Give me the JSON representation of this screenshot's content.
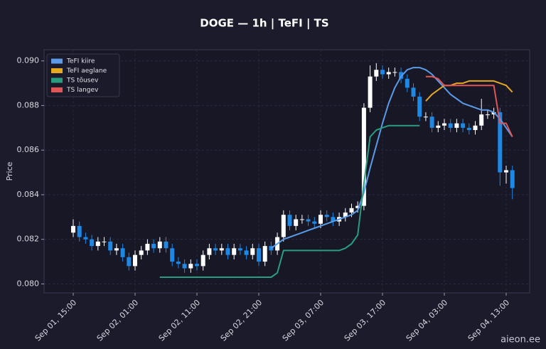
{
  "chart_data": {
    "type": "candlestick",
    "title": "DOGE — 1h  |  TeFI  |  TS",
    "y_label": "Price",
    "watermark": "aieon.ee",
    "grid": true,
    "legend_position": "upper-left",
    "up_color": "#ffffff",
    "down_color": "#1e88e5",
    "ylim": [
      0.0796,
      0.0905
    ],
    "yticks": [
      {
        "value": 0.08,
        "label": "0.080"
      },
      {
        "value": 0.082,
        "label": "0.082"
      },
      {
        "value": 0.084,
        "label": "0.084"
      },
      {
        "value": 0.086,
        "label": "0.086"
      },
      {
        "value": 0.088,
        "label": "0.088"
      },
      {
        "value": 0.09,
        "label": "0.090"
      }
    ],
    "categories": [
      "Sep 01, 15:00",
      null,
      null,
      null,
      null,
      null,
      null,
      null,
      null,
      null,
      "Sep 02, 01:00",
      null,
      null,
      null,
      null,
      null,
      null,
      null,
      null,
      null,
      "Sep 02, 11:00",
      null,
      null,
      null,
      null,
      null,
      null,
      null,
      null,
      null,
      "Sep 02, 21:00",
      null,
      null,
      null,
      null,
      null,
      null,
      null,
      null,
      null,
      "Sep 03, 07:00",
      null,
      null,
      null,
      null,
      null,
      null,
      null,
      null,
      null,
      "Sep 03, 17:00",
      null,
      null,
      null,
      null,
      null,
      null,
      null,
      null,
      null,
      "Sep 04, 03:00",
      null,
      null,
      null,
      null,
      null,
      null,
      null,
      null,
      null,
      "Sep 04, 13:00",
      null
    ],
    "open": [
      0.0823,
      0.0826,
      0.0821,
      0.082,
      0.0817,
      0.0819,
      0.0819,
      0.0815,
      0.0816,
      0.0812,
      0.0808,
      0.0813,
      0.0815,
      0.0818,
      0.0816,
      0.0819,
      0.0816,
      0.081,
      0.0809,
      0.0807,
      0.0809,
      0.0808,
      0.0813,
      0.0816,
      0.0815,
      0.0816,
      0.0813,
      0.0816,
      0.0815,
      0.0813,
      0.0816,
      0.081,
      0.0817,
      0.0815,
      0.0821,
      0.0831,
      0.0826,
      0.0829,
      0.0829,
      0.0828,
      0.0827,
      0.0831,
      0.083,
      0.0828,
      0.083,
      0.0832,
      0.0834,
      0.0835,
      0.0879,
      0.0893,
      0.0896,
      0.0894,
      0.0895,
      0.0895,
      0.0892,
      0.0888,
      0.0884,
      0.0875,
      0.0875,
      0.087,
      0.0871,
      0.0872,
      0.087,
      0.0872,
      0.087,
      0.0869,
      0.0871,
      0.0876,
      0.0876,
      0.0877,
      0.085,
      0.0851
    ],
    "high": [
      0.0829,
      0.0828,
      0.0823,
      0.0822,
      0.0821,
      0.0821,
      0.0821,
      0.0818,
      0.0818,
      0.0814,
      0.0815,
      0.0817,
      0.082,
      0.082,
      0.0821,
      0.0821,
      0.0818,
      0.0812,
      0.0811,
      0.0811,
      0.0811,
      0.0815,
      0.0818,
      0.0818,
      0.0818,
      0.0818,
      0.0818,
      0.0818,
      0.0817,
      0.0818,
      0.0818,
      0.0819,
      0.0819,
      0.0823,
      0.0833,
      0.0833,
      0.0831,
      0.0831,
      0.0831,
      0.083,
      0.0833,
      0.0833,
      0.0832,
      0.0832,
      0.0834,
      0.0836,
      0.0837,
      0.0881,
      0.0898,
      0.0899,
      0.0898,
      0.0897,
      0.0897,
      0.0897,
      0.0894,
      0.089,
      0.0886,
      0.0877,
      0.0877,
      0.0873,
      0.0874,
      0.0874,
      0.0874,
      0.0874,
      0.0872,
      0.0873,
      0.0883,
      0.0878,
      0.0879,
      0.0879,
      0.0853,
      0.0853
    ],
    "low": [
      0.0821,
      0.0819,
      0.0818,
      0.0815,
      0.0815,
      0.0817,
      0.0813,
      0.0813,
      0.081,
      0.0806,
      0.0806,
      0.0811,
      0.0813,
      0.0814,
      0.0814,
      0.0814,
      0.0808,
      0.0807,
      0.0805,
      0.0805,
      0.0806,
      0.0806,
      0.0811,
      0.0813,
      0.0813,
      0.0811,
      0.0811,
      0.0813,
      0.0811,
      0.0811,
      0.0808,
      0.0808,
      0.0813,
      0.0813,
      0.0819,
      0.0824,
      0.0824,
      0.0827,
      0.0826,
      0.0825,
      0.0825,
      0.0828,
      0.0826,
      0.0826,
      0.0828,
      0.083,
      0.0832,
      0.0833,
      0.0877,
      0.0891,
      0.0892,
      0.0892,
      0.0893,
      0.089,
      0.0886,
      0.0882,
      0.0873,
      0.0873,
      0.0868,
      0.0868,
      0.0869,
      0.0868,
      0.0868,
      0.0868,
      0.0867,
      0.0867,
      0.0869,
      0.0874,
      0.0874,
      0.0844,
      0.0845,
      0.0838
    ],
    "close": [
      0.0826,
      0.0821,
      0.082,
      0.0817,
      0.0819,
      0.0819,
      0.0815,
      0.0816,
      0.0812,
      0.0808,
      0.0813,
      0.0815,
      0.0818,
      0.0816,
      0.0819,
      0.0816,
      0.081,
      0.0809,
      0.0807,
      0.0809,
      0.0808,
      0.0813,
      0.0816,
      0.0815,
      0.0816,
      0.0813,
      0.0816,
      0.0815,
      0.0813,
      0.0816,
      0.081,
      0.0817,
      0.0815,
      0.0821,
      0.0831,
      0.0826,
      0.0829,
      0.0829,
      0.0828,
      0.0827,
      0.0831,
      0.083,
      0.0828,
      0.083,
      0.0832,
      0.0834,
      0.0835,
      0.0879,
      0.0893,
      0.0896,
      0.0894,
      0.0895,
      0.0895,
      0.0892,
      0.0888,
      0.0884,
      0.0875,
      0.0875,
      0.087,
      0.0871,
      0.0872,
      0.087,
      0.0872,
      0.087,
      0.0869,
      0.0871,
      0.0876,
      0.0876,
      0.0877,
      0.085,
      0.0851,
      0.0843
    ],
    "series": [
      {
        "name": "TeFI kiire",
        "color": "#5b9be8",
        "values": [
          null,
          null,
          null,
          null,
          null,
          null,
          null,
          null,
          null,
          null,
          null,
          null,
          null,
          null,
          null,
          null,
          null,
          null,
          null,
          null,
          null,
          null,
          null,
          null,
          null,
          null,
          null,
          null,
          null,
          null,
          null,
          null,
          0.0816,
          0.0818,
          0.082,
          0.0821,
          0.0822,
          0.0823,
          0.0824,
          0.0825,
          0.0826,
          0.0827,
          0.0828,
          0.0829,
          0.083,
          0.0831,
          0.0833,
          0.0841,
          0.0852,
          0.0862,
          0.0872,
          0.0881,
          0.0888,
          0.0893,
          0.0896,
          0.0897,
          0.0897,
          0.0896,
          0.0894,
          0.0891,
          0.0888,
          0.0885,
          0.0883,
          0.0881,
          0.088,
          0.0879,
          0.0878,
          0.0878,
          0.0877,
          0.0874,
          0.087,
          0.0866
        ]
      },
      {
        "name": "TeFI aeglane",
        "color": "#e5a823",
        "values": [
          null,
          null,
          null,
          null,
          null,
          null,
          null,
          null,
          null,
          null,
          null,
          null,
          null,
          null,
          null,
          null,
          null,
          null,
          null,
          null,
          null,
          null,
          null,
          null,
          null,
          null,
          null,
          null,
          null,
          null,
          null,
          null,
          null,
          null,
          null,
          null,
          null,
          null,
          null,
          null,
          null,
          null,
          null,
          null,
          null,
          null,
          null,
          null,
          null,
          null,
          null,
          null,
          null,
          null,
          null,
          null,
          null,
          0.0882,
          0.0885,
          0.0887,
          0.0889,
          0.0889,
          0.089,
          0.089,
          0.0891,
          0.0891,
          0.0891,
          0.0891,
          0.0891,
          0.089,
          0.0889,
          0.0886
        ]
      },
      {
        "name": "TS tõusev",
        "color": "#2a9d80",
        "values": [
          null,
          null,
          null,
          null,
          null,
          null,
          null,
          null,
          null,
          null,
          null,
          null,
          null,
          null,
          0.0803,
          0.0803,
          0.0803,
          0.0803,
          0.0803,
          0.0803,
          0.0803,
          0.0803,
          0.0803,
          0.0803,
          0.0803,
          0.0803,
          0.0803,
          0.0803,
          0.0803,
          0.0803,
          0.0803,
          0.0803,
          0.0803,
          0.0805,
          0.0815,
          0.0815,
          0.0815,
          0.0815,
          0.0815,
          0.0815,
          0.0815,
          0.0815,
          0.0815,
          0.0815,
          0.0816,
          0.0818,
          0.0822,
          0.0845,
          0.0866,
          0.0869,
          0.087,
          0.0871,
          0.0871,
          0.0871,
          0.0871,
          0.0871,
          0.0871,
          null,
          null,
          null,
          null,
          null,
          null,
          null,
          null,
          null,
          null,
          null,
          null,
          null,
          null,
          null
        ]
      },
      {
        "name": "TS langev",
        "color": "#e05555",
        "values": [
          null,
          null,
          null,
          null,
          null,
          null,
          null,
          null,
          null,
          null,
          null,
          null,
          null,
          null,
          null,
          null,
          null,
          null,
          null,
          null,
          null,
          null,
          null,
          null,
          null,
          null,
          null,
          null,
          null,
          null,
          null,
          null,
          null,
          null,
          null,
          null,
          null,
          null,
          null,
          null,
          null,
          null,
          null,
          null,
          null,
          null,
          null,
          null,
          null,
          null,
          null,
          null,
          null,
          null,
          null,
          null,
          null,
          0.0893,
          0.0893,
          0.0892,
          0.0889,
          0.0889,
          0.0889,
          0.0889,
          0.0889,
          0.0889,
          0.0889,
          0.0889,
          0.0889,
          0.0872,
          0.0872,
          0.0866
        ]
      }
    ]
  }
}
